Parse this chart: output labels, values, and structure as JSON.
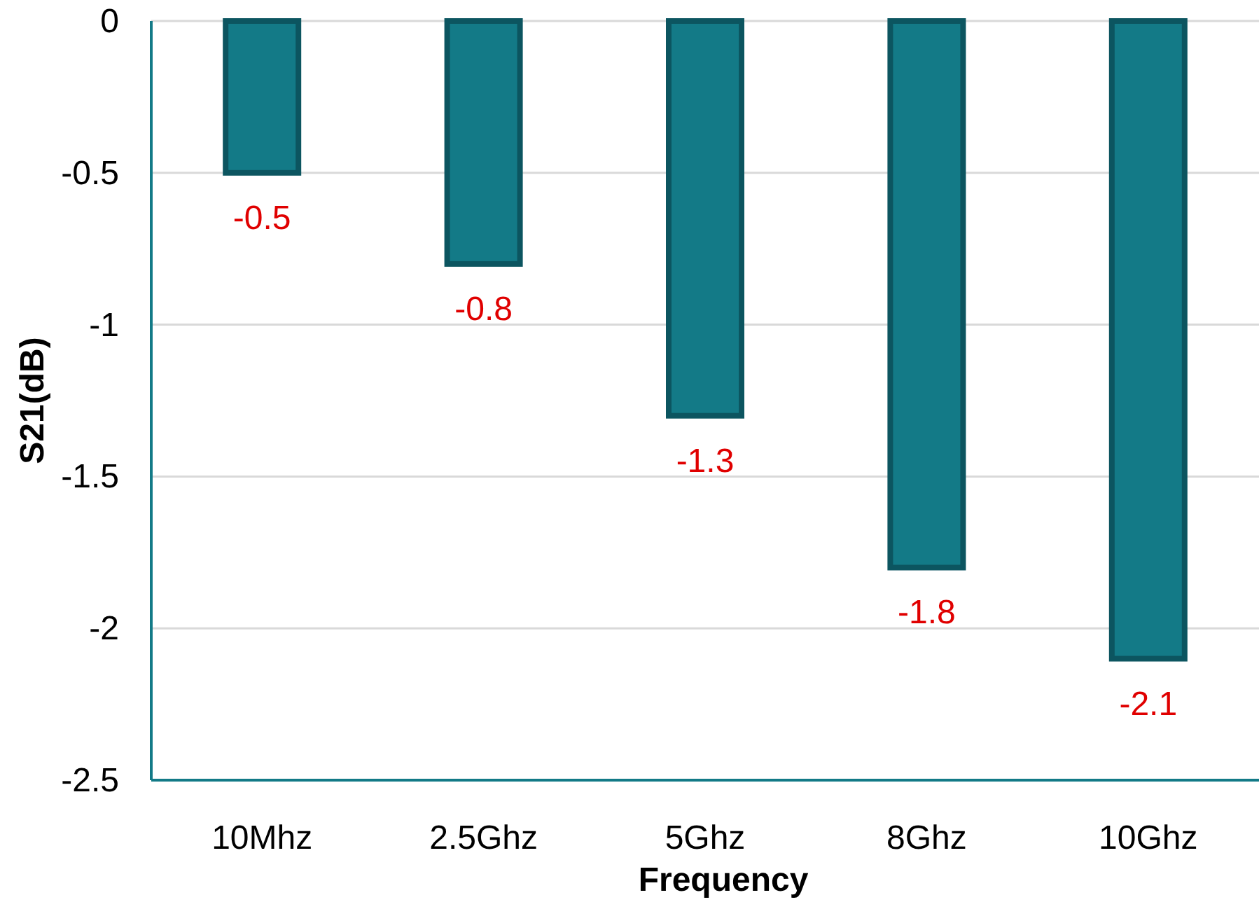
{
  "chart_data": {
    "type": "bar",
    "xlabel": "Frequency",
    "ylabel": "S21(dB)",
    "categories": [
      "10Mhz",
      "2.5Ghz",
      "5Ghz",
      "8Ghz",
      "10Ghz"
    ],
    "values": [
      -0.5,
      -0.8,
      -1.3,
      -1.8,
      -2.1
    ],
    "color": "#137a87",
    "ylim": [
      -2.5,
      0
    ],
    "yticks": [
      -2.5,
      -2,
      -1.5,
      -1,
      -0.5,
      0
    ],
    "grid": "y",
    "data_labels": true
  }
}
